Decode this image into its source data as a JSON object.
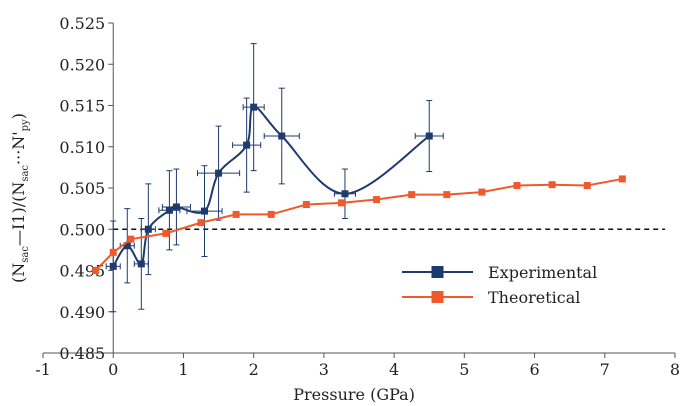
{
  "chart_data": {
    "type": "line",
    "xlabel": "Pressure (GPa)",
    "ylabel_parts": [
      "(N",
      "sac",
      "—I1)/(N",
      "sac",
      "···N'",
      "py",
      ")"
    ],
    "xlim": [
      -1,
      8
    ],
    "ylim": [
      0.485,
      0.525
    ],
    "x_ticks": [
      -1,
      0,
      1,
      2,
      3,
      4,
      5,
      6,
      7,
      8
    ],
    "y_ticks": [
      0.485,
      0.49,
      0.495,
      0.5,
      0.505,
      0.51,
      0.515,
      0.52,
      0.525
    ],
    "x_tick_labels": [
      "-1",
      "0",
      "1",
      "2",
      "3",
      "4",
      "5",
      "6",
      "7",
      "8"
    ],
    "y_tick_labels": [
      "0.485",
      "0.490",
      "0.495",
      "0.500",
      "0.505",
      "0.510",
      "0.515",
      "0.520",
      "0.525"
    ],
    "reference_line": {
      "y": 0.5,
      "style": "dashed"
    },
    "legend_position": "center-right",
    "series": [
      {
        "name": "Experimental",
        "color": "#1f3a6e",
        "smooth": true,
        "points": [
          {
            "x": 0.0,
            "y": 0.4955,
            "yerr": 0.0055,
            "xerr": 0.1
          },
          {
            "x": 0.2,
            "y": 0.498,
            "yerr": 0.0045,
            "xerr": 0.1
          },
          {
            "x": 0.4,
            "y": 0.4958,
            "yerr": 0.0055,
            "xerr": 0.1
          },
          {
            "x": 0.5,
            "y": 0.5,
            "yerr": 0.0055,
            "xerr": 0.1
          },
          {
            "x": 0.8,
            "y": 0.5023,
            "yerr": 0.0048,
            "xerr": 0.15
          },
          {
            "x": 0.9,
            "y": 0.5027,
            "yerr": 0.0046,
            "xerr": 0.2
          },
          {
            "x": 1.3,
            "y": 0.5022,
            "yerr": 0.0055,
            "xerr": 0.25
          },
          {
            "x": 1.5,
            "y": 0.5068,
            "yerr": 0.0057,
            "xerr": 0.3
          },
          {
            "x": 1.9,
            "y": 0.5102,
            "yerr": 0.0057,
            "xerr": 0.2
          },
          {
            "x": 2.0,
            "y": 0.5148,
            "yerr": 0.0077,
            "xerr": 0.15
          },
          {
            "x": 2.4,
            "y": 0.5113,
            "yerr": 0.0058,
            "xerr": 0.25
          },
          {
            "x": 3.3,
            "y": 0.5043,
            "yerr": 0.003,
            "xerr": 0.15
          },
          {
            "x": 4.5,
            "y": 0.5113,
            "yerr": 0.0043,
            "xerr": 0.2
          }
        ]
      },
      {
        "name": "Theoretical",
        "color": "#ee5a2b",
        "smooth": false,
        "points": [
          {
            "x": -0.25,
            "y": 0.495
          },
          {
            "x": 0.0,
            "y": 0.4972
          },
          {
            "x": 0.25,
            "y": 0.4988
          },
          {
            "x": 0.75,
            "y": 0.4995
          },
          {
            "x": 1.25,
            "y": 0.5008
          },
          {
            "x": 1.75,
            "y": 0.5018
          },
          {
            "x": 2.25,
            "y": 0.5018
          },
          {
            "x": 2.75,
            "y": 0.503
          },
          {
            "x": 3.25,
            "y": 0.5032
          },
          {
            "x": 3.75,
            "y": 0.5036
          },
          {
            "x": 4.25,
            "y": 0.5042
          },
          {
            "x": 4.75,
            "y": 0.5042
          },
          {
            "x": 5.25,
            "y": 0.5045
          },
          {
            "x": 5.75,
            "y": 0.5053
          },
          {
            "x": 6.25,
            "y": 0.5054
          },
          {
            "x": 6.75,
            "y": 0.5053
          },
          {
            "x": 7.25,
            "y": 0.5061
          }
        ]
      }
    ]
  }
}
